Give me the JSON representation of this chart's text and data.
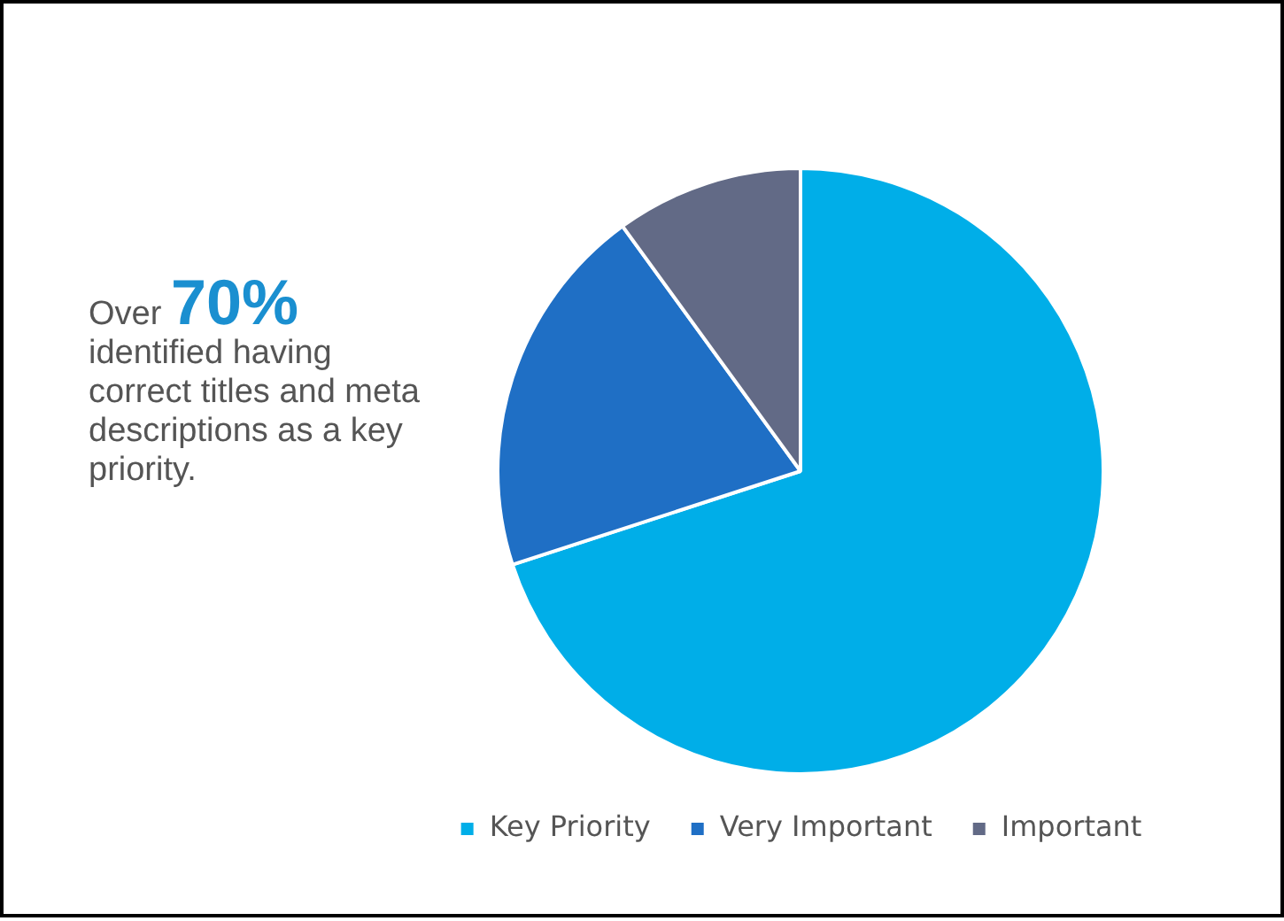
{
  "chart_data": {
    "type": "pie",
    "categories": [
      "Key Priority",
      "Very Important",
      "Important"
    ],
    "values": [
      70,
      20,
      10
    ],
    "colors": [
      "#00aee8",
      "#1f6fc5",
      "#626a86"
    ],
    "legend": "bottom",
    "annotations": [
      "Over",
      "70%",
      "identified having correct titles and meta descriptions as a key priority."
    ]
  }
}
